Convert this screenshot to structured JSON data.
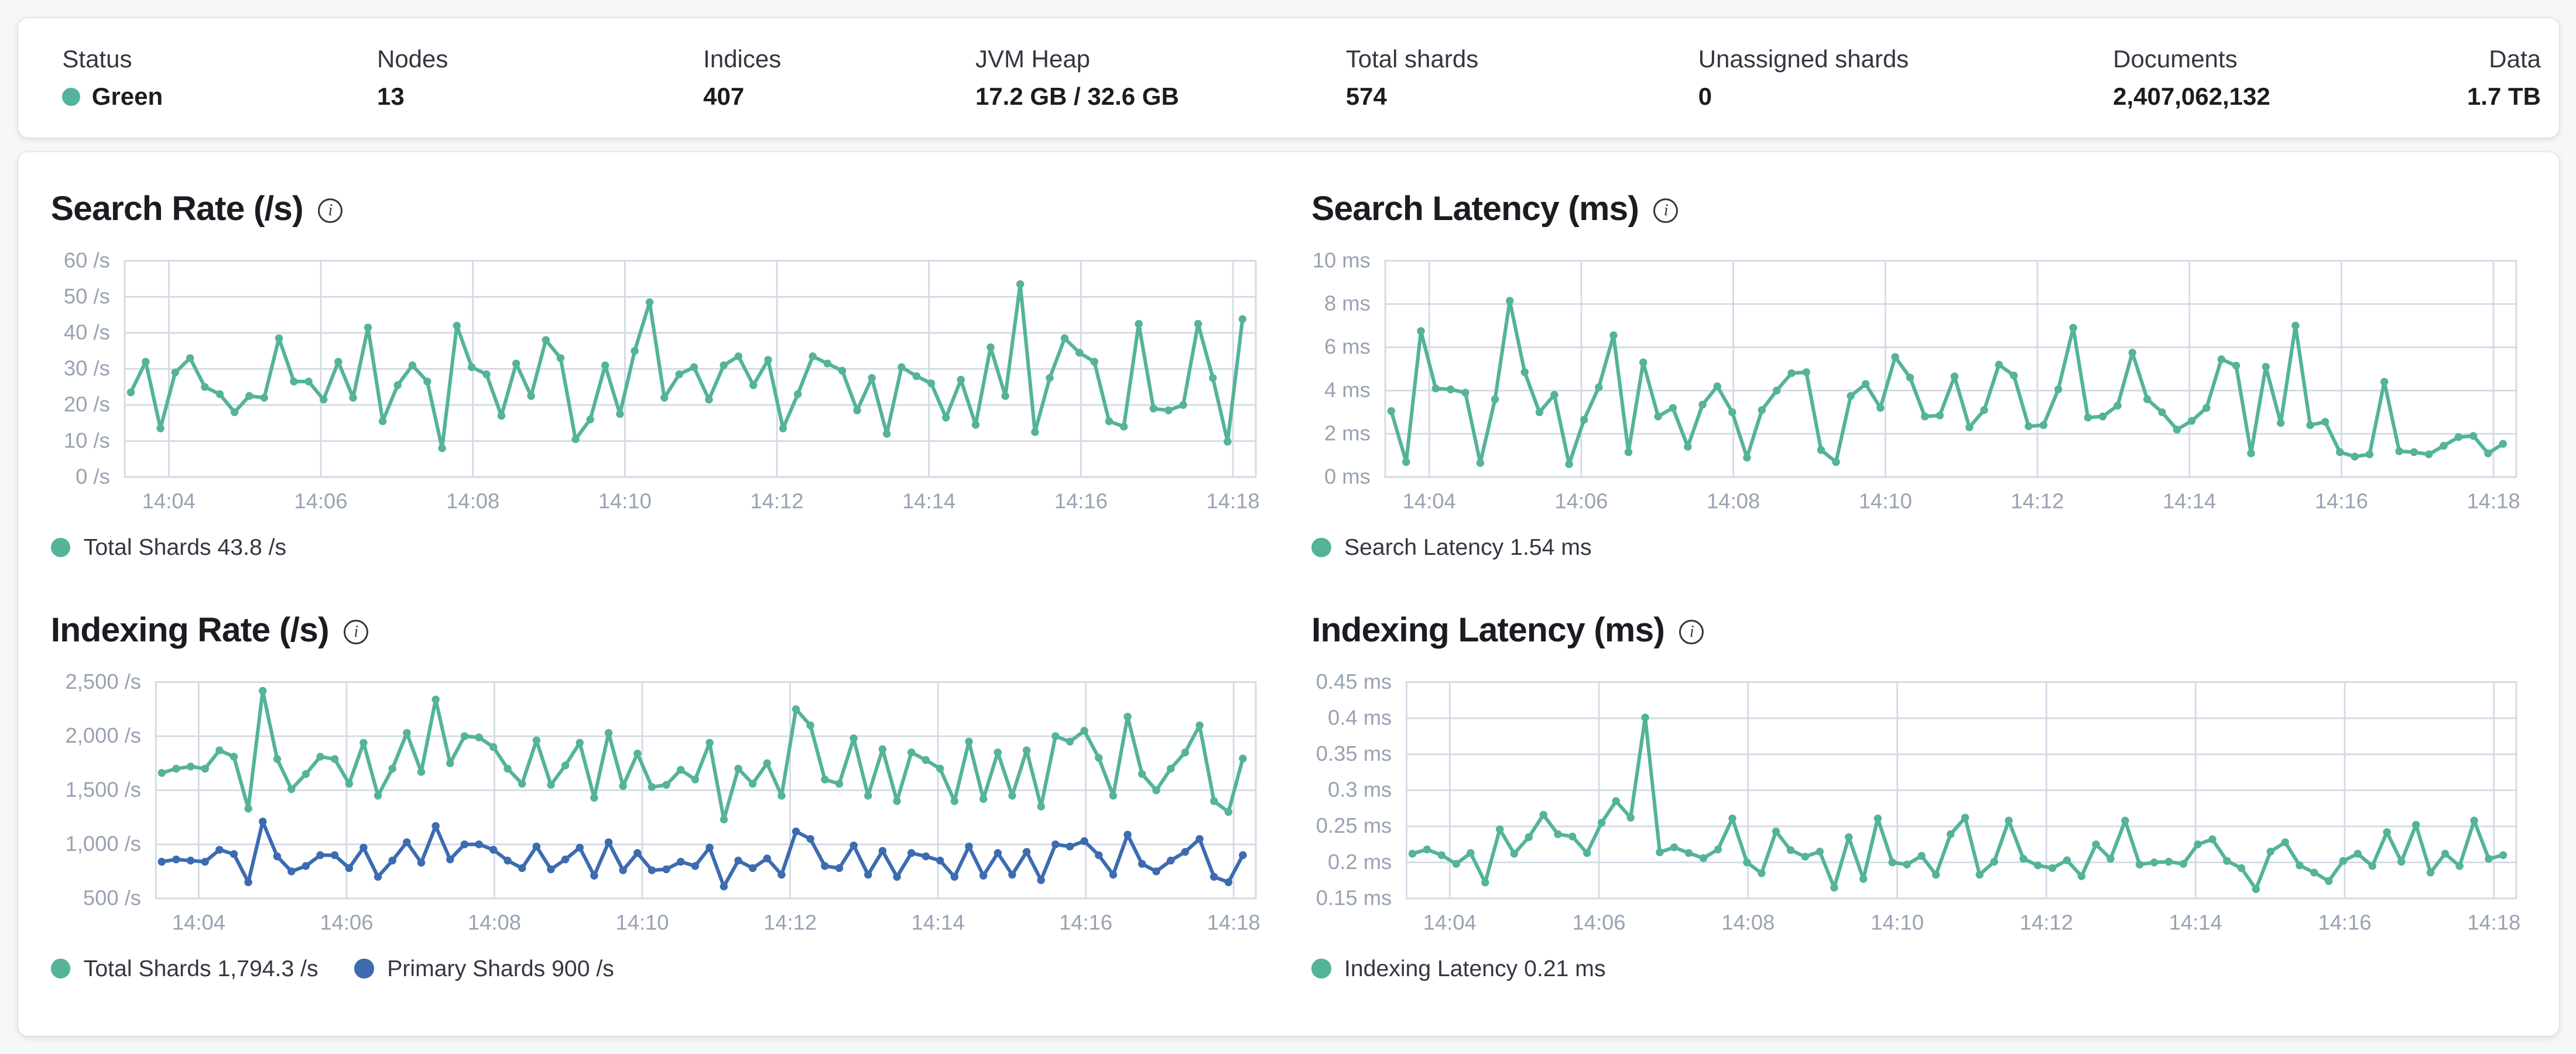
{
  "colors": {
    "teal": "#54B399",
    "blue": "#3C6BB0",
    "grid": "#d3dae6",
    "axis_text": "#98a2b3",
    "status_green": "#54B399"
  },
  "overview": {
    "stats": [
      {
        "label": "Status",
        "value": "Green"
      },
      {
        "label": "Nodes",
        "value": "13"
      },
      {
        "label": "Indices",
        "value": "407"
      },
      {
        "label": "JVM Heap",
        "value": "17.2 GB / 32.6 GB"
      },
      {
        "label": "Total shards",
        "value": "574"
      },
      {
        "label": "Unassigned shards",
        "value": "0"
      },
      {
        "label": "Documents",
        "value": "2,407,062,132"
      },
      {
        "label": "Data",
        "value": "1.7 TB"
      }
    ]
  },
  "chart_data": [
    {
      "id": "search-rate",
      "type": "line",
      "title": "Search Rate (/s)",
      "ylim": [
        0,
        60
      ],
      "y_ticks": [
        {
          "v": 0,
          "label": "0 /s"
        },
        {
          "v": 10,
          "label": "10 /s"
        },
        {
          "v": 20,
          "label": "20 /s"
        },
        {
          "v": 30,
          "label": "30 /s"
        },
        {
          "v": 40,
          "label": "40 /s"
        },
        {
          "v": 50,
          "label": "50 /s"
        },
        {
          "v": 60,
          "label": "60 /s"
        }
      ],
      "xlim": [
        3.42,
        18.3
      ],
      "x_start": 3.5,
      "x_step": 0.195,
      "x_ticks": [
        {
          "v": 4,
          "label": "14:04"
        },
        {
          "v": 6,
          "label": "14:06"
        },
        {
          "v": 8,
          "label": "14:08"
        },
        {
          "v": 10,
          "label": "14:10"
        },
        {
          "v": 12,
          "label": "14:12"
        },
        {
          "v": 14,
          "label": "14:14"
        },
        {
          "v": 16,
          "label": "14:16"
        },
        {
          "v": 18,
          "label": "14:18"
        }
      ],
      "series": [
        {
          "name": "Total Shards",
          "legend": "Total Shards 43.8 /s",
          "color": "#54B399",
          "values": [
            23.5,
            32,
            13.5,
            29,
            33,
            25,
            23,
            18,
            22.5,
            22,
            38.5,
            26.5,
            26.5,
            21.5,
            32,
            22,
            41.5,
            15.5,
            25.5,
            31,
            26.5,
            8,
            42,
            30.5,
            28.5,
            17,
            31.5,
            22.5,
            38,
            33,
            10.5,
            16,
            31,
            17.5,
            35,
            48.5,
            22,
            28.5,
            30.5,
            21.5,
            31,
            33.5,
            25.5,
            32.5,
            13.5,
            23,
            33.5,
            31.5,
            29.5,
            18.5,
            27.5,
            12,
            30.5,
            28,
            26,
            16.5,
            27,
            14.5,
            36,
            22.5,
            53.5,
            12.5,
            27.5,
            38.5,
            34.5,
            32,
            15.5,
            14,
            42.5,
            19,
            18.5,
            20,
            42.5,
            27.5,
            9.8,
            43.8
          ]
        }
      ]
    },
    {
      "id": "search-latency",
      "type": "line",
      "title": "Search Latency (ms)",
      "ylim": [
        0,
        10
      ],
      "y_ticks": [
        {
          "v": 0,
          "label": "0 ms"
        },
        {
          "v": 2,
          "label": "2 ms"
        },
        {
          "v": 4,
          "label": "4 ms"
        },
        {
          "v": 6,
          "label": "6 ms"
        },
        {
          "v": 8,
          "label": "8 ms"
        },
        {
          "v": 10,
          "label": "10 ms"
        }
      ],
      "xlim": [
        3.42,
        18.3
      ],
      "x_start": 3.5,
      "x_step": 0.195,
      "x_ticks": [
        {
          "v": 4,
          "label": "14:04"
        },
        {
          "v": 6,
          "label": "14:06"
        },
        {
          "v": 8,
          "label": "14:08"
        },
        {
          "v": 10,
          "label": "14:10"
        },
        {
          "v": 12,
          "label": "14:12"
        },
        {
          "v": 14,
          "label": "14:14"
        },
        {
          "v": 16,
          "label": "14:16"
        },
        {
          "v": 18,
          "label": "14:18"
        }
      ],
      "series": [
        {
          "name": "Search Latency",
          "legend": "Search Latency 1.54 ms",
          "color": "#54B399",
          "values": [
            3.05,
            0.7,
            6.75,
            4.1,
            4.05,
            3.9,
            0.65,
            3.6,
            8.15,
            4.85,
            3.0,
            3.8,
            0.6,
            2.65,
            4.15,
            6.55,
            1.15,
            5.3,
            2.8,
            3.2,
            1.4,
            3.35,
            4.2,
            3.0,
            0.9,
            3.1,
            4.0,
            4.8,
            4.85,
            1.25,
            0.7,
            3.75,
            4.3,
            3.2,
            5.55,
            4.6,
            2.8,
            2.85,
            4.65,
            2.3,
            3.1,
            5.2,
            4.7,
            2.35,
            2.4,
            4.05,
            6.9,
            2.75,
            2.8,
            3.3,
            5.75,
            3.6,
            3.0,
            2.2,
            2.6,
            3.2,
            5.45,
            5.15,
            1.1,
            5.1,
            2.5,
            7.0,
            2.4,
            2.55,
            1.15,
            0.95,
            1.05,
            4.4,
            1.2,
            1.15,
            1.05,
            1.45,
            1.85,
            1.9,
            1.1,
            1.54
          ]
        }
      ]
    },
    {
      "id": "indexing-rate",
      "type": "line",
      "title": "Indexing Rate (/s)",
      "ylim": [
        500,
        2500
      ],
      "y_ticks": [
        {
          "v": 500,
          "label": "500 /s"
        },
        {
          "v": 1000,
          "label": "1,000 /s"
        },
        {
          "v": 1500,
          "label": "1,500 /s"
        },
        {
          "v": 2000,
          "label": "2,000 /s"
        },
        {
          "v": 2500,
          "label": "2,500 /s"
        }
      ],
      "xlim": [
        3.42,
        18.3
      ],
      "x_start": 3.5,
      "x_step": 0.195,
      "x_ticks": [
        {
          "v": 4,
          "label": "14:04"
        },
        {
          "v": 6,
          "label": "14:06"
        },
        {
          "v": 8,
          "label": "14:08"
        },
        {
          "v": 10,
          "label": "14:10"
        },
        {
          "v": 12,
          "label": "14:12"
        },
        {
          "v": 14,
          "label": "14:14"
        },
        {
          "v": 16,
          "label": "14:16"
        },
        {
          "v": 18,
          "label": "14:18"
        }
      ],
      "series": [
        {
          "name": "Total Shards",
          "legend": "Total Shards 1,794.3 /s",
          "color": "#54B399",
          "values": [
            1660,
            1700,
            1720,
            1700,
            1870,
            1810,
            1330,
            2420,
            1790,
            1510,
            1650,
            1810,
            1790,
            1560,
            1940,
            1450,
            1700,
            2030,
            1670,
            2340,
            1750,
            2000,
            1990,
            1900,
            1700,
            1560,
            1960,
            1550,
            1730,
            1940,
            1430,
            2030,
            1540,
            1840,
            1530,
            1550,
            1690,
            1600,
            1940,
            1230,
            1700,
            1560,
            1750,
            1450,
            2250,
            2100,
            1600,
            1560,
            1980,
            1450,
            1880,
            1400,
            1850,
            1780,
            1700,
            1400,
            1950,
            1420,
            1850,
            1450,
            1870,
            1350,
            2000,
            1950,
            2050,
            1800,
            1450,
            2180,
            1650,
            1500,
            1700,
            1850,
            2100,
            1400,
            1300,
            1794.3
          ]
        },
        {
          "name": "Primary Shards",
          "legend": "Primary Shards 900 /s",
          "color": "#3C6BB0",
          "values": [
            840,
            860,
            850,
            840,
            950,
            910,
            650,
            1210,
            890,
            750,
            800,
            900,
            900,
            780,
            970,
            700,
            850,
            1020,
            830,
            1170,
            860,
            1000,
            1000,
            950,
            850,
            780,
            980,
            770,
            860,
            970,
            710,
            1020,
            760,
            920,
            760,
            770,
            840,
            800,
            970,
            610,
            850,
            780,
            870,
            720,
            1120,
            1050,
            800,
            780,
            990,
            720,
            940,
            700,
            920,
            890,
            850,
            700,
            980,
            710,
            920,
            720,
            930,
            670,
            1000,
            980,
            1030,
            900,
            720,
            1090,
            820,
            750,
            850,
            930,
            1050,
            700,
            650,
            900
          ]
        }
      ]
    },
    {
      "id": "indexing-latency",
      "type": "line",
      "title": "Indexing Latency (ms)",
      "ylim": [
        0.15,
        0.45
      ],
      "y_ticks": [
        {
          "v": 0.15,
          "label": "0.15 ms"
        },
        {
          "v": 0.2,
          "label": "0.2 ms"
        },
        {
          "v": 0.25,
          "label": "0.25 ms"
        },
        {
          "v": 0.3,
          "label": "0.3 ms"
        },
        {
          "v": 0.35,
          "label": "0.35 ms"
        },
        {
          "v": 0.4,
          "label": "0.4 ms"
        },
        {
          "v": 0.45,
          "label": "0.45 ms"
        }
      ],
      "xlim": [
        3.42,
        18.3
      ],
      "x_start": 3.5,
      "x_step": 0.195,
      "x_ticks": [
        {
          "v": 4,
          "label": "14:04"
        },
        {
          "v": 6,
          "label": "14:06"
        },
        {
          "v": 8,
          "label": "14:08"
        },
        {
          "v": 10,
          "label": "14:10"
        },
        {
          "v": 12,
          "label": "14:12"
        },
        {
          "v": 14,
          "label": "14:14"
        },
        {
          "v": 16,
          "label": "14:16"
        },
        {
          "v": 18,
          "label": "14:18"
        }
      ],
      "series": [
        {
          "name": "Indexing Latency",
          "legend": "Indexing Latency 0.21 ms",
          "color": "#54B399",
          "values": [
            0.212,
            0.218,
            0.21,
            0.198,
            0.213,
            0.172,
            0.246,
            0.212,
            0.235,
            0.266,
            0.239,
            0.236,
            0.213,
            0.255,
            0.285,
            0.262,
            0.401,
            0.214,
            0.221,
            0.213,
            0.206,
            0.218,
            0.261,
            0.2,
            0.185,
            0.243,
            0.217,
            0.208,
            0.215,
            0.165,
            0.235,
            0.177,
            0.261,
            0.2,
            0.197,
            0.209,
            0.183,
            0.239,
            0.262,
            0.183,
            0.201,
            0.258,
            0.205,
            0.196,
            0.192,
            0.203,
            0.181,
            0.225,
            0.205,
            0.258,
            0.197,
            0.2,
            0.201,
            0.198,
            0.225,
            0.232,
            0.202,
            0.192,
            0.163,
            0.215,
            0.228,
            0.196,
            0.186,
            0.174,
            0.202,
            0.212,
            0.195,
            0.242,
            0.201,
            0.252,
            0.186,
            0.212,
            0.195,
            0.258,
            0.205,
            0.21
          ]
        }
      ]
    }
  ]
}
